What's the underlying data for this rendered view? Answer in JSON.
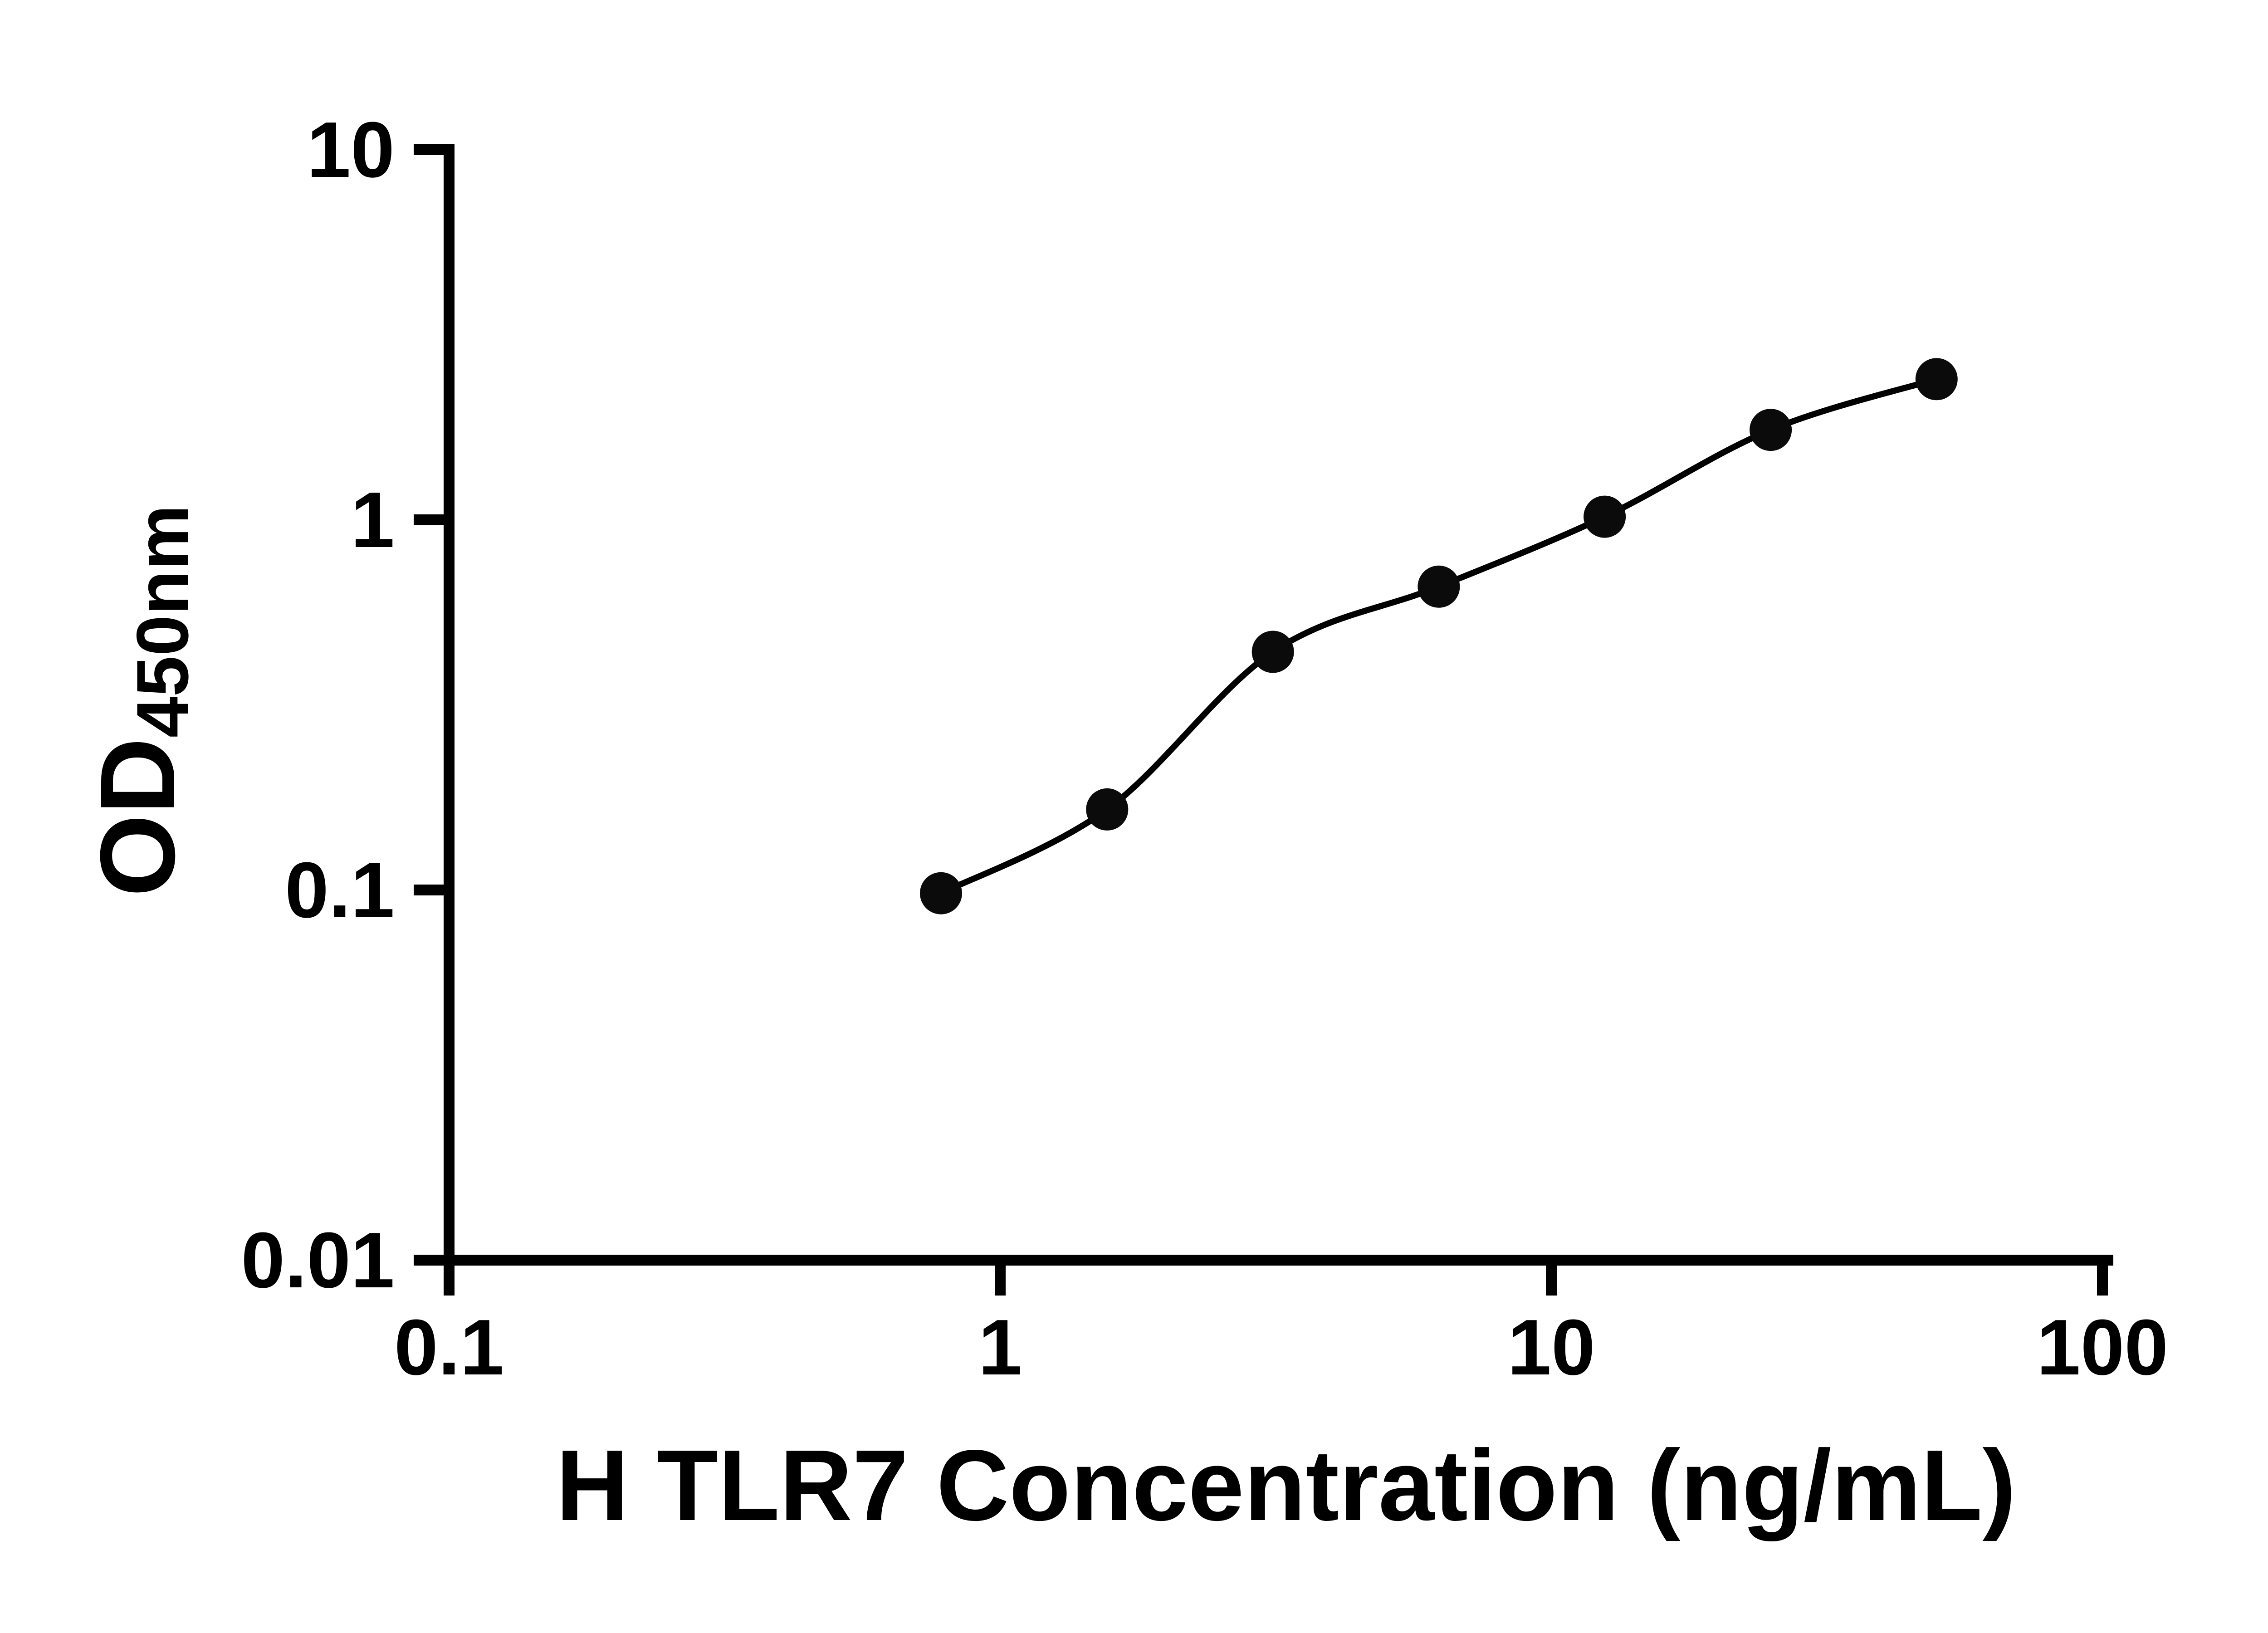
{
  "chart_data": {
    "type": "scatter",
    "title": "",
    "xlabel": "H TLR7 Concentration (ng/mL)",
    "ylabel": "OD450nm",
    "ylabel_main": "OD",
    "ylabel_sub": "450nm",
    "x_scale": "log",
    "y_scale": "log",
    "xlim": [
      0.1,
      100
    ],
    "ylim": [
      0.01,
      10
    ],
    "x_tick_values": [
      0.1,
      1,
      10,
      100
    ],
    "x_tick_labels": [
      "0.1",
      "1",
      "10",
      "100"
    ],
    "y_tick_values": [
      0.01,
      0.1,
      1,
      10
    ],
    "y_tick_labels": [
      "0.01",
      "0.1",
      "1",
      "10"
    ],
    "grid": false,
    "legend": false,
    "curve": "smooth fit line through points",
    "series": [
      {
        "marker": "filled-circle",
        "color": "#0b0b0b",
        "x": [
          0.781,
          1.563,
          3.125,
          6.25,
          12.5,
          25,
          50
        ],
        "y": [
          0.098,
          0.165,
          0.44,
          0.66,
          1.02,
          1.75,
          2.4
        ]
      }
    ]
  },
  "colors": {
    "background": "#ffffff",
    "axis": "#000000",
    "marker": "#0b0b0b"
  }
}
